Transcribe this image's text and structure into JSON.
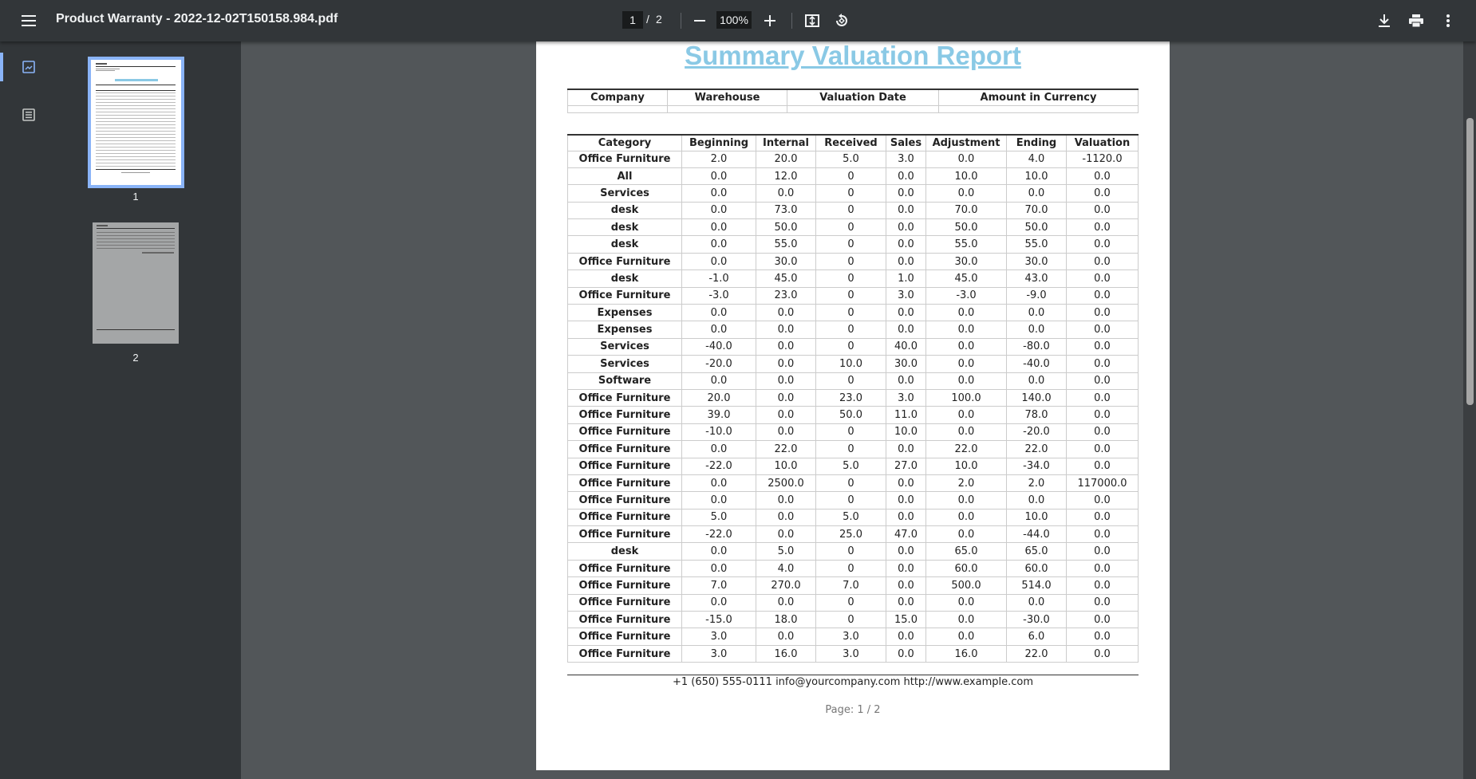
{
  "toolbar": {
    "title": "Product Warranty - 2022-12-02T150158.984.pdf",
    "page_current": "1",
    "page_separator": "/",
    "page_total": "2",
    "zoom": "100%"
  },
  "sidebar": {
    "thumbnails": [
      {
        "label": "1"
      },
      {
        "label": "2"
      }
    ]
  },
  "report": {
    "title": "Summary Valuation Report",
    "header_columns": [
      "Company",
      "Warehouse",
      "Valuation Date",
      "Amount in Currency"
    ],
    "columns": [
      "Category",
      "Beginning",
      "Internal",
      "Received",
      "Sales",
      "Adjustment",
      "Ending",
      "Valuation"
    ],
    "rows": [
      [
        "Office Furniture",
        "2.0",
        "20.0",
        "5.0",
        "3.0",
        "0.0",
        "4.0",
        "-1120.0"
      ],
      [
        "All",
        "0.0",
        "12.0",
        "0",
        "0.0",
        "10.0",
        "10.0",
        "0.0"
      ],
      [
        "Services",
        "0.0",
        "0.0",
        "0",
        "0.0",
        "0.0",
        "0.0",
        "0.0"
      ],
      [
        "desk",
        "0.0",
        "73.0",
        "0",
        "0.0",
        "70.0",
        "70.0",
        "0.0"
      ],
      [
        "desk",
        "0.0",
        "50.0",
        "0",
        "0.0",
        "50.0",
        "50.0",
        "0.0"
      ],
      [
        "desk",
        "0.0",
        "55.0",
        "0",
        "0.0",
        "55.0",
        "55.0",
        "0.0"
      ],
      [
        "Office Furniture",
        "0.0",
        "30.0",
        "0",
        "0.0",
        "30.0",
        "30.0",
        "0.0"
      ],
      [
        "desk",
        "-1.0",
        "45.0",
        "0",
        "1.0",
        "45.0",
        "43.0",
        "0.0"
      ],
      [
        "Office Furniture",
        "-3.0",
        "23.0",
        "0",
        "3.0",
        "-3.0",
        "-9.0",
        "0.0"
      ],
      [
        "Expenses",
        "0.0",
        "0.0",
        "0",
        "0.0",
        "0.0",
        "0.0",
        "0.0"
      ],
      [
        "Expenses",
        "0.0",
        "0.0",
        "0",
        "0.0",
        "0.0",
        "0.0",
        "0.0"
      ],
      [
        "Services",
        "-40.0",
        "0.0",
        "0",
        "40.0",
        "0.0",
        "-80.0",
        "0.0"
      ],
      [
        "Services",
        "-20.0",
        "0.0",
        "10.0",
        "30.0",
        "0.0",
        "-40.0",
        "0.0"
      ],
      [
        "Software",
        "0.0",
        "0.0",
        "0",
        "0.0",
        "0.0",
        "0.0",
        "0.0"
      ],
      [
        "Office Furniture",
        "20.0",
        "0.0",
        "23.0",
        "3.0",
        "100.0",
        "140.0",
        "0.0"
      ],
      [
        "Office Furniture",
        "39.0",
        "0.0",
        "50.0",
        "11.0",
        "0.0",
        "78.0",
        "0.0"
      ],
      [
        "Office Furniture",
        "-10.0",
        "0.0",
        "0",
        "10.0",
        "0.0",
        "-20.0",
        "0.0"
      ],
      [
        "Office Furniture",
        "0.0",
        "22.0",
        "0",
        "0.0",
        "22.0",
        "22.0",
        "0.0"
      ],
      [
        "Office Furniture",
        "-22.0",
        "10.0",
        "5.0",
        "27.0",
        "10.0",
        "-34.0",
        "0.0"
      ],
      [
        "Office Furniture",
        "0.0",
        "2500.0",
        "0",
        "0.0",
        "2.0",
        "2.0",
        "117000.0"
      ],
      [
        "Office Furniture",
        "0.0",
        "0.0",
        "0",
        "0.0",
        "0.0",
        "0.0",
        "0.0"
      ],
      [
        "Office Furniture",
        "5.0",
        "0.0",
        "5.0",
        "0.0",
        "0.0",
        "10.0",
        "0.0"
      ],
      [
        "Office Furniture",
        "-22.0",
        "0.0",
        "25.0",
        "47.0",
        "0.0",
        "-44.0",
        "0.0"
      ],
      [
        "desk",
        "0.0",
        "5.0",
        "0",
        "0.0",
        "65.0",
        "65.0",
        "0.0"
      ],
      [
        "Office Furniture",
        "0.0",
        "4.0",
        "0",
        "0.0",
        "60.0",
        "60.0",
        "0.0"
      ],
      [
        "Office Furniture",
        "7.0",
        "270.0",
        "7.0",
        "0.0",
        "500.0",
        "514.0",
        "0.0"
      ],
      [
        "Office Furniture",
        "0.0",
        "0.0",
        "0",
        "0.0",
        "0.0",
        "0.0",
        "0.0"
      ],
      [
        "Office Furniture",
        "-15.0",
        "18.0",
        "0",
        "15.0",
        "0.0",
        "-30.0",
        "0.0"
      ],
      [
        "Office Furniture",
        "3.0",
        "0.0",
        "3.0",
        "0.0",
        "0.0",
        "6.0",
        "0.0"
      ],
      [
        "Office Furniture",
        "3.0",
        "16.0",
        "3.0",
        "0.0",
        "16.0",
        "22.0",
        "0.0"
      ]
    ],
    "footer_contact": "+1 (650) 555-0111 info@yourcompany.com http://www.example.com",
    "footer_page": "Page: 1 / 2"
  }
}
